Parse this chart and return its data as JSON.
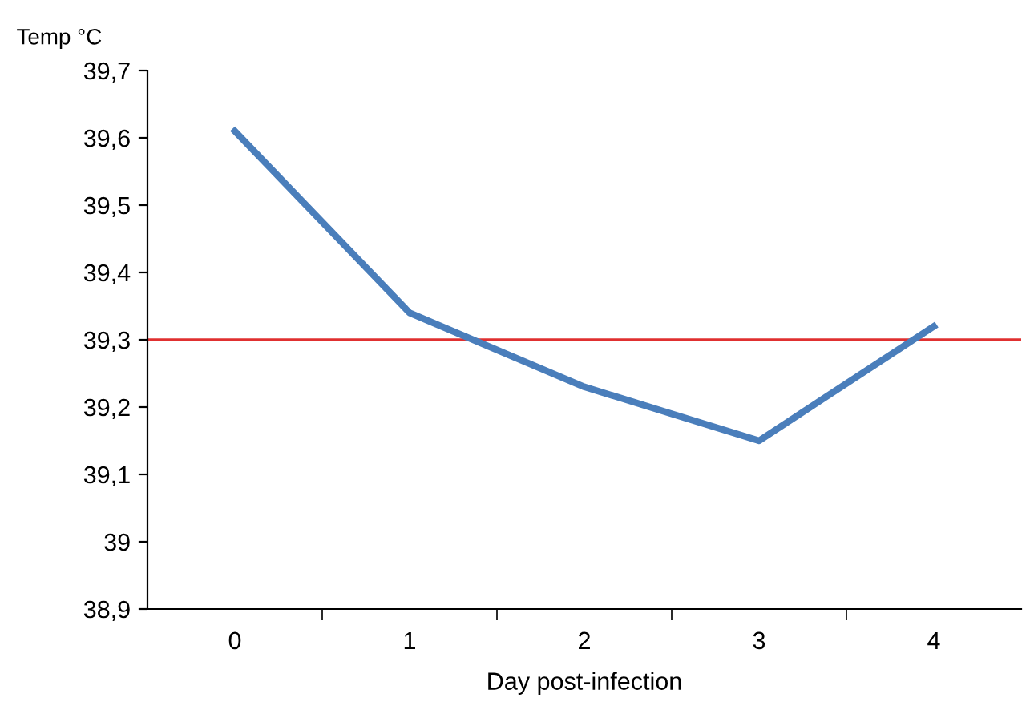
{
  "chart_data": {
    "type": "line",
    "ylabel": "Temp °C",
    "xlabel": "Day post-infection",
    "categories": [
      "0",
      "1",
      "2",
      "3",
      "4"
    ],
    "series": [
      {
        "color": "#4a7ebb",
        "values": [
          39.61,
          39.34,
          39.23,
          39.15,
          39.32
        ]
      }
    ],
    "ylim": [
      38.9,
      39.7
    ],
    "yticks": [
      {
        "value": 38.9,
        "label": "38,9"
      },
      {
        "value": 39.0,
        "label": "39"
      },
      {
        "value": 39.1,
        "label": "39,1"
      },
      {
        "value": 39.2,
        "label": "39,2"
      },
      {
        "value": 39.3,
        "label": "39,3"
      },
      {
        "value": 39.4,
        "label": "39,4"
      },
      {
        "value": 39.5,
        "label": "39,5"
      },
      {
        "value": 39.6,
        "label": "39,6"
      },
      {
        "value": 39.7,
        "label": "39,7"
      }
    ],
    "ref_lines": [
      {
        "axis": "y",
        "value": 39.3,
        "color": "#e03030"
      }
    ],
    "grid": false,
    "marker": "none",
    "line_style": "solid"
  }
}
